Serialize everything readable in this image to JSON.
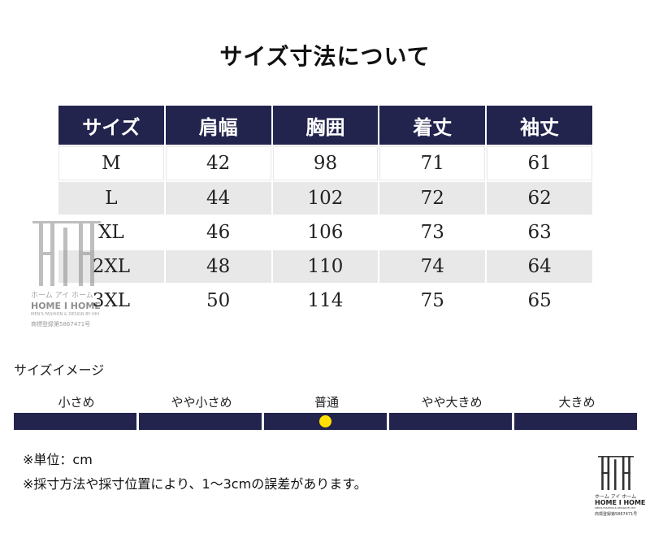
{
  "title": "サイズ寸法について",
  "table": {
    "headers": [
      "サイズ",
      "肩幅",
      "胸囲",
      "着丈",
      "袖丈"
    ],
    "rows": [
      [
        "M",
        "42",
        "98",
        "71",
        "61"
      ],
      [
        "L",
        "44",
        "102",
        "72",
        "62"
      ],
      [
        "XL",
        "46",
        "106",
        "73",
        "63"
      ],
      [
        "2XL",
        "48",
        "110",
        "74",
        "64"
      ],
      [
        "3XL",
        "50",
        "114",
        "75",
        "65"
      ]
    ]
  },
  "size_image": {
    "heading": "サイズイメージ",
    "labels": [
      "小さめ",
      "やや小さめ",
      "普通",
      "やや大きめ",
      "大きめ"
    ],
    "selected_index": 2,
    "bar_color": "#23244d",
    "marker_color": "#ffe000"
  },
  "notes": [
    "※単位：cm",
    "※採寸方法や採寸位置により、1～3cmの誤差があります。"
  ],
  "watermark": {
    "line1": "ホーム アイ ホーム",
    "line2": "HOME I HOME",
    "line3": "MEN'S FASHION & DESIGN BY HIH",
    "line4": "商標登録第5867471号"
  },
  "colors": {
    "header_bg": "#23244d",
    "alt_row_bg": "#e8e8e8"
  }
}
